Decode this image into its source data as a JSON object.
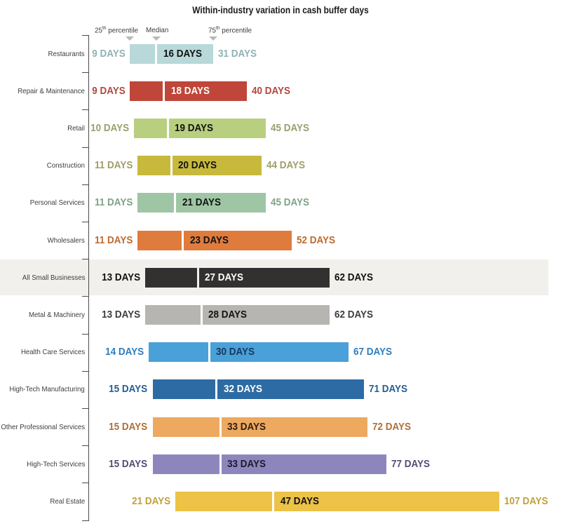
{
  "title": "Within-industry variation in cash buffer days",
  "unit_label": "DAYS",
  "legend": {
    "p25": {
      "num": "25",
      "sup": "th",
      "rest": " percentile"
    },
    "median": {
      "label": "Median"
    },
    "p75": {
      "num": "75",
      "sup": "th",
      "rest": " percentile"
    }
  },
  "colors": {
    "axis": "#4a4a48",
    "legend_marker": "#b9bab6",
    "highlight_band": "#f2f0ec",
    "row_name_text": "#3d3d3b",
    "median_gap": "#ffffff"
  },
  "chart_data": {
    "type": "bar",
    "orientation": "horizontal-range",
    "title": "Within-industry variation in cash buffer days",
    "x_unit": "days",
    "xlim": [
      0,
      107
    ],
    "value_suffix": "DAYS",
    "legend_entries": [
      "25th percentile",
      "Median",
      "75th percentile"
    ],
    "rows": [
      {
        "industry": "Restaurants",
        "p25": 9,
        "median": 16,
        "p75": 31,
        "bar_color": "#b8d8d9",
        "value_label_color": "#90b2b4",
        "median_text_color": "#121212",
        "highlight": false
      },
      {
        "industry": "Repair & Maintenance",
        "p25": 9,
        "median": 18,
        "p75": 40,
        "bar_color": "#bf4638",
        "value_label_color": "#b2473b",
        "median_text_color": "#ffffff",
        "highlight": false
      },
      {
        "industry": "Retail",
        "p25": 10,
        "median": 19,
        "p75": 45,
        "bar_color": "#b9cf80",
        "value_label_color": "#99a06e",
        "median_text_color": "#121212",
        "highlight": false
      },
      {
        "industry": "Construction",
        "p25": 11,
        "median": 20,
        "p75": 44,
        "bar_color": "#c7b93c",
        "value_label_color": "#a19d68",
        "median_text_color": "#121212",
        "highlight": false
      },
      {
        "industry": "Personal Services",
        "p25": 11,
        "median": 21,
        "p75": 45,
        "bar_color": "#9ec6a4",
        "value_label_color": "#7fa287",
        "median_text_color": "#121212",
        "highlight": false
      },
      {
        "industry": "Wholesalers",
        "p25": 11,
        "median": 23,
        "p75": 52,
        "bar_color": "#df7b3d",
        "value_label_color": "#bd6a2f",
        "median_text_color": "#121212",
        "highlight": false
      },
      {
        "industry": "All Small Businesses",
        "p25": 13,
        "median": 27,
        "p75": 62,
        "bar_color": "#333130",
        "value_label_color": "#111111",
        "median_text_color": "#ffffff",
        "highlight": true
      },
      {
        "industry": "Metal & Machinery",
        "p25": 13,
        "median": 28,
        "p75": 62,
        "bar_color": "#b6b5b2",
        "value_label_color": "#3e3e3e",
        "median_text_color": "#121212",
        "highlight": false
      },
      {
        "industry": "Health Care Services",
        "p25": 14,
        "median": 30,
        "p75": 67,
        "bar_color": "#4aa0d8",
        "value_label_color": "#2e7ec0",
        "median_text_color": "#17395c",
        "highlight": false
      },
      {
        "industry": "High-Tech Manufacturing",
        "p25": 15,
        "median": 32,
        "p75": 71,
        "bar_color": "#2d6ba4",
        "value_label_color": "#245e93",
        "median_text_color": "#ffffff",
        "highlight": false
      },
      {
        "industry": "Other Professional Services",
        "p25": 15,
        "median": 33,
        "p75": 72,
        "bar_color": "#eda95f",
        "value_label_color": "#b06f35",
        "median_text_color": "#2e2012",
        "highlight": false
      },
      {
        "industry": "High-Tech Services",
        "p25": 15,
        "median": 33,
        "p75": 77,
        "bar_color": "#8d86bd",
        "value_label_color": "#524d77",
        "median_text_color": "#1d1b2e",
        "highlight": false
      },
      {
        "industry": "Real Estate",
        "p25": 21,
        "median": 47,
        "p75": 107,
        "bar_color": "#ecc347",
        "value_label_color": "#c1a13c",
        "median_text_color": "#121212",
        "highlight": false
      }
    ]
  }
}
